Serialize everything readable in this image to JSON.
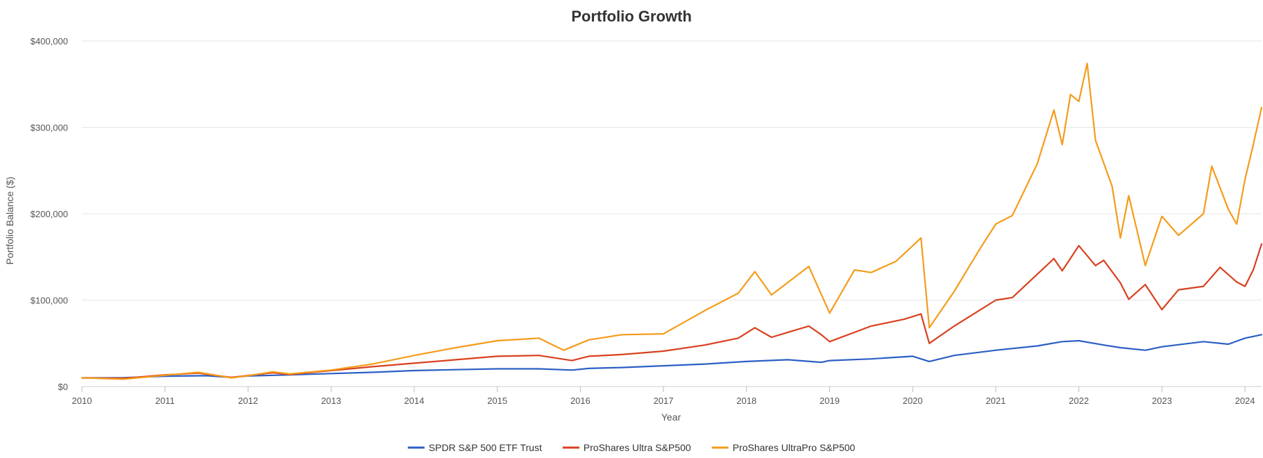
{
  "chart_data": {
    "type": "line",
    "title": "Portfolio Growth",
    "xlabel": "Year",
    "ylabel": "Portfolio Balance ($)",
    "xlim": [
      2010,
      2024.2
    ],
    "ylim": [
      0,
      400000
    ],
    "x_ticks": [
      "2010",
      "2011",
      "2012",
      "2013",
      "2014",
      "2015",
      "2016",
      "2017",
      "2018",
      "2019",
      "2020",
      "2021",
      "2022",
      "2023",
      "2024"
    ],
    "y_ticks": [
      "$0",
      "$100,000",
      "$200,000",
      "$300,000",
      "$400,000"
    ],
    "grid": true,
    "legend_position": "bottom",
    "series": [
      {
        "name": "SPDR S&P 500 ETF Trust",
        "color": "#2b5fc4",
        "x": [
          2010,
          2010.5,
          2011,
          2011.5,
          2011.8,
          2012,
          2012.5,
          2013,
          2013.5,
          2014,
          2014.5,
          2015,
          2015.5,
          2015.9,
          2016.1,
          2016.5,
          2017,
          2017.5,
          2018,
          2018.5,
          2018.9,
          2019,
          2019.5,
          2020,
          2020.2,
          2020.5,
          2021,
          2021.5,
          2021.8,
          2022,
          2022.3,
          2022.5,
          2022.8,
          2023,
          2023.5,
          2023.8,
          2024,
          2024.2
        ],
        "values": [
          10000,
          10200,
          12000,
          12500,
          10500,
          12200,
          13500,
          15000,
          16500,
          18500,
          19500,
          20500,
          20500,
          19000,
          21000,
          22000,
          24000,
          26000,
          29000,
          31000,
          28000,
          30000,
          32000,
          35000,
          29000,
          36000,
          42000,
          47000,
          52000,
          53000,
          48000,
          45000,
          42000,
          46000,
          52000,
          49000,
          56000,
          60000
        ]
      },
      {
        "name": "ProShares Ultra S&P500",
        "color": "#d8401f",
        "x": [
          2010,
          2010.5,
          2011,
          2011.4,
          2011.8,
          2012,
          2012.3,
          2012.5,
          2013,
          2013.5,
          2014,
          2014.5,
          2015,
          2015.5,
          2015.9,
          2016.1,
          2016.5,
          2017,
          2017.5,
          2017.9,
          2018.1,
          2018.3,
          2018.75,
          2018.9,
          2019,
          2019.5,
          2019.9,
          2020.1,
          2020.2,
          2020.5,
          2020.8,
          2021,
          2021.2,
          2021.5,
          2021.7,
          2021.8,
          2022,
          2022.2,
          2022.3,
          2022.5,
          2022.6,
          2022.8,
          2023,
          2023.2,
          2023.5,
          2023.7,
          2023.9,
          2024,
          2024.1,
          2024.2
        ],
        "values": [
          10000,
          9500,
          13500,
          15500,
          10500,
          12800,
          16000,
          14000,
          18500,
          23000,
          27000,
          31000,
          35000,
          36000,
          30000,
          35000,
          37000,
          41000,
          48000,
          56000,
          68000,
          57000,
          70000,
          60000,
          52000,
          70000,
          78000,
          84000,
          50000,
          70000,
          88000,
          100000,
          103000,
          130000,
          148000,
          134000,
          163000,
          140000,
          146000,
          120000,
          101000,
          118000,
          89000,
          112000,
          116000,
          138000,
          121000,
          116000,
          135000,
          165000
        ]
      },
      {
        "name": "ProShares UltraPro S&P500",
        "color": "#f59b1a",
        "x": [
          2010,
          2010.5,
          2011,
          2011.4,
          2011.8,
          2012,
          2012.3,
          2012.5,
          2013,
          2013.5,
          2014,
          2014.5,
          2015,
          2015.5,
          2015.8,
          2016.1,
          2016.5,
          2017,
          2017.5,
          2017.9,
          2018.1,
          2018.3,
          2018.75,
          2019,
          2019.3,
          2019.5,
          2019.8,
          2020.1,
          2020.2,
          2020.5,
          2020.8,
          2021,
          2021.2,
          2021.5,
          2021.7,
          2021.8,
          2021.9,
          2022,
          2022.1,
          2022.2,
          2022.4,
          2022.5,
          2022.6,
          2022.8,
          2023,
          2023.2,
          2023.5,
          2023.6,
          2023.8,
          2023.9,
          2024,
          2024.1,
          2024.2
        ],
        "values": [
          10000,
          8500,
          13000,
          16500,
          10000,
          12500,
          17000,
          14500,
          19000,
          26000,
          36000,
          45000,
          53000,
          56000,
          42000,
          54000,
          60000,
          61000,
          88000,
          108000,
          133000,
          106000,
          139000,
          85000,
          135000,
          132000,
          145000,
          172000,
          68000,
          110000,
          158000,
          188000,
          198000,
          258000,
          320000,
          280000,
          338000,
          330000,
          374000,
          285000,
          232000,
          172000,
          221000,
          140000,
          197000,
          175000,
          200000,
          255000,
          205000,
          188000,
          240000,
          280000,
          323000
        ]
      }
    ]
  }
}
